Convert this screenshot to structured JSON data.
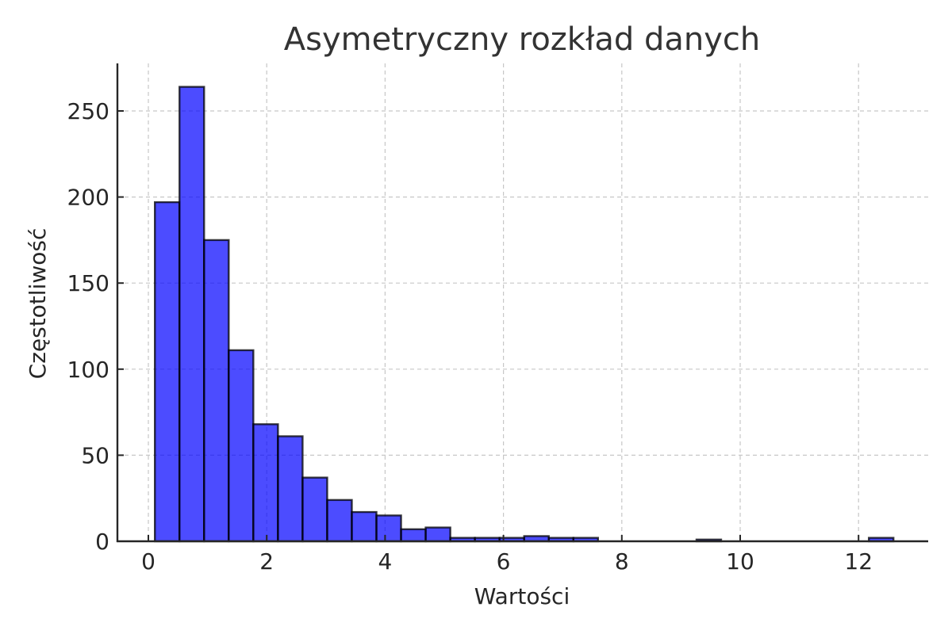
{
  "chart_data": {
    "type": "bar",
    "subtype": "histogram",
    "title": "Asymetryczny rozkład danych",
    "xlabel": "Wartości",
    "ylabel": "Częstotliwość",
    "xlim": [
      -0.5,
      13.1
    ],
    "ylim": [
      0,
      278
    ],
    "xticks": [
      0,
      2,
      4,
      6,
      8,
      10,
      12
    ],
    "yticks": [
      0,
      50,
      100,
      150,
      200,
      250
    ],
    "grid": true,
    "bar_color": "#0000ff",
    "bar_alpha": 0.7,
    "edge_color": "#000000",
    "bin_start": 0.11,
    "bin_width": 0.416,
    "values": [
      197,
      264,
      175,
      111,
      68,
      61,
      37,
      24,
      17,
      15,
      7,
      8,
      2,
      2,
      2,
      3,
      2,
      2,
      0,
      0,
      0,
      0,
      1,
      0,
      0,
      0,
      0,
      0,
      0,
      2
    ]
  }
}
